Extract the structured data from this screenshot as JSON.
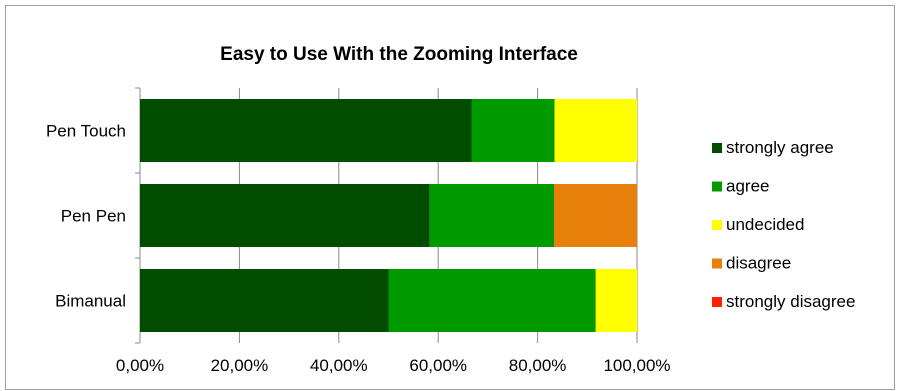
{
  "chart_data": {
    "type": "bar",
    "orientation": "horizontal",
    "stacked": true,
    "normalized": true,
    "title": "Easy to Use With the Zooming Interface",
    "categories": [
      "Pen Touch",
      "Pen Pen",
      "Bimanual"
    ],
    "xlabel": "",
    "ylabel": "",
    "xlim": [
      0,
      1
    ],
    "x_ticks": [
      "0,00%",
      "20,00%",
      "40,00%",
      "60,00%",
      "80,00%",
      "100,00%"
    ],
    "grid": "vertical",
    "legend_position": "right",
    "series": [
      {
        "name": "strongly agree",
        "color": "#004d00",
        "values": [
          0.667,
          0.583,
          0.5
        ]
      },
      {
        "name": "agree",
        "color": "#009900",
        "values": [
          0.167,
          0.25,
          0.417
        ]
      },
      {
        "name": "undecided",
        "color": "#ffff00",
        "values": [
          0.166,
          0.0,
          0.083
        ]
      },
      {
        "name": "disagree",
        "color": "#e6800a",
        "values": [
          0.0,
          0.167,
          0.0
        ]
      },
      {
        "name": "strongly disagree",
        "color": "#ff2200",
        "values": [
          0.0,
          0.0,
          0.0
        ]
      }
    ]
  }
}
